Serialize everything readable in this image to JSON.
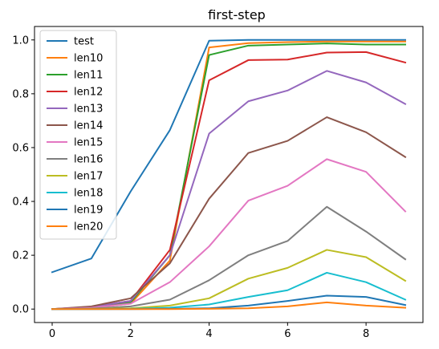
{
  "chart_data": {
    "type": "line",
    "title": "first-step",
    "xlabel": "",
    "ylabel": "",
    "xlim": [
      -0.45,
      9.45
    ],
    "ylim": [
      -0.05,
      1.05
    ],
    "x": [
      0,
      1,
      2,
      3,
      4,
      5,
      6,
      7,
      8,
      9
    ],
    "xticks": [
      0,
      2,
      4,
      6,
      8
    ],
    "yticks": [
      0.0,
      0.2,
      0.4,
      0.6,
      0.8,
      1.0
    ],
    "xtick_labels": [
      "0",
      "2",
      "4",
      "6",
      "8"
    ],
    "ytick_labels": [
      "0.0",
      "0.2",
      "0.4",
      "0.6",
      "0.8",
      "1.0"
    ],
    "grid": false,
    "legend_position": "top-left",
    "series": [
      {
        "name": "test",
        "color": "#1f77b4",
        "values": [
          0.137,
          0.188,
          0.437,
          0.665,
          0.997,
          1.0,
          1.0,
          1.0,
          1.0,
          1.0
        ]
      },
      {
        "name": "len10",
        "color": "#ff7f0e",
        "values": [
          0.0,
          0.005,
          0.02,
          0.18,
          0.972,
          0.988,
          0.992,
          0.994,
          0.994,
          0.994
        ]
      },
      {
        "name": "len11",
        "color": "#2ca02c",
        "values": [
          0.0,
          0.005,
          0.025,
          0.2,
          0.944,
          0.979,
          0.983,
          0.987,
          0.983,
          0.983
        ]
      },
      {
        "name": "len12",
        "color": "#d62728",
        "values": [
          0.0,
          0.008,
          0.03,
          0.22,
          0.85,
          0.925,
          0.927,
          0.953,
          0.955,
          0.916
        ]
      },
      {
        "name": "len13",
        "color": "#9467bd",
        "values": [
          0.0,
          0.008,
          0.03,
          0.2,
          0.652,
          0.772,
          0.812,
          0.885,
          0.842,
          0.762
        ]
      },
      {
        "name": "len14",
        "color": "#8c564b",
        "values": [
          0.0,
          0.01,
          0.04,
          0.17,
          0.41,
          0.58,
          0.625,
          0.713,
          0.657,
          0.565
        ]
      },
      {
        "name": "len15",
        "color": "#e377c2",
        "values": [
          0.0,
          0.005,
          0.02,
          0.1,
          0.233,
          0.403,
          0.458,
          0.557,
          0.51,
          0.363
        ]
      },
      {
        "name": "len16",
        "color": "#7f7f7f",
        "values": [
          0.0,
          0.002,
          0.01,
          0.035,
          0.107,
          0.2,
          0.253,
          0.38,
          0.288,
          0.185
        ]
      },
      {
        "name": "len17",
        "color": "#bcbd22",
        "values": [
          0.0,
          0.001,
          0.003,
          0.013,
          0.04,
          0.113,
          0.153,
          0.22,
          0.193,
          0.105
        ]
      },
      {
        "name": "len18",
        "color": "#17becf",
        "values": [
          0.0,
          0.0,
          0.001,
          0.005,
          0.017,
          0.045,
          0.07,
          0.135,
          0.1,
          0.035
        ]
      },
      {
        "name": "len19",
        "color": "#1f77b4",
        "values": [
          0.0,
          0.0,
          0.0,
          0.001,
          0.003,
          0.013,
          0.03,
          0.05,
          0.045,
          0.015
        ]
      },
      {
        "name": "len20",
        "color": "#ff7f0e",
        "values": [
          0.0,
          0.0,
          0.0,
          0.0,
          0.001,
          0.003,
          0.01,
          0.025,
          0.013,
          0.005
        ]
      }
    ]
  }
}
